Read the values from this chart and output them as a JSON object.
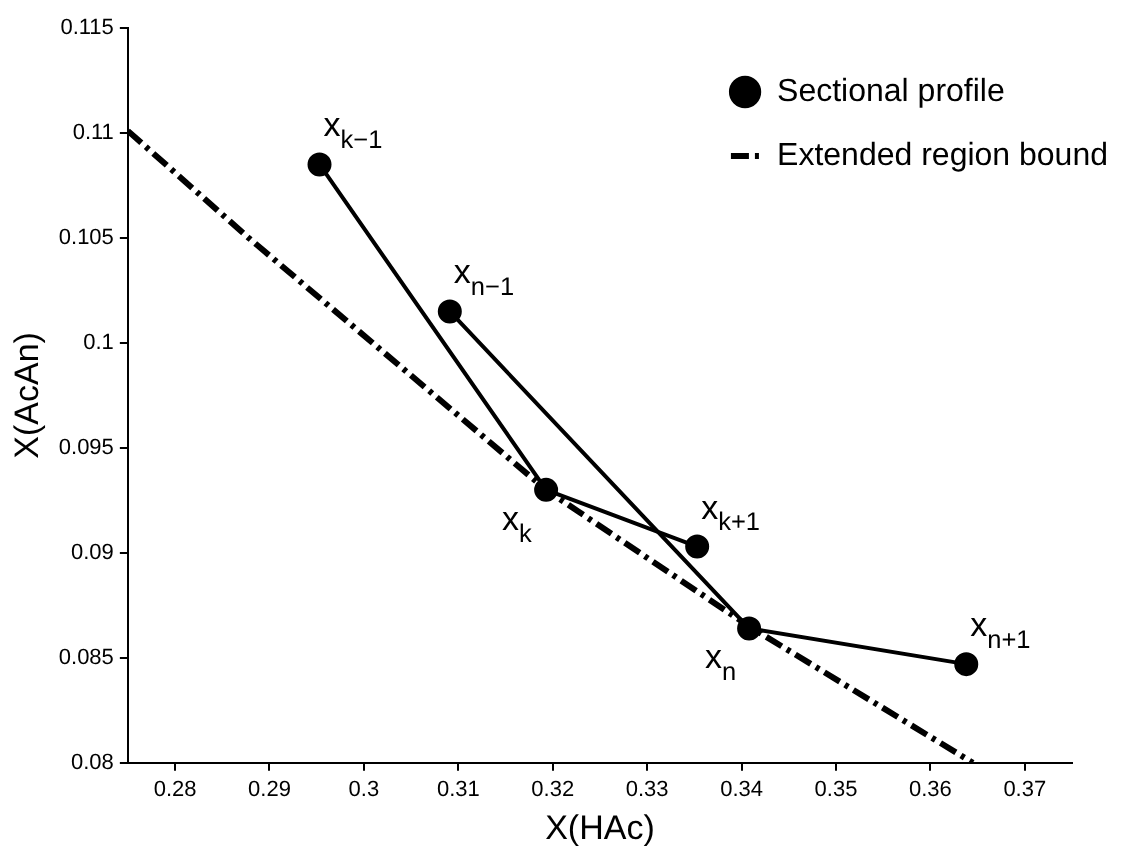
{
  "chart_data": {
    "type": "line",
    "xlabel": "X(HAc)",
    "ylabel": "X(AcAn)",
    "xlim": [
      0.275,
      0.375
    ],
    "xticks": [
      0.28,
      0.29,
      0.3,
      0.31,
      0.32,
      0.33,
      0.34,
      0.35,
      0.36,
      0.37
    ],
    "ylim": [
      0.08,
      0.115
    ],
    "yticks": [
      0.08,
      0.085,
      0.09,
      0.095,
      0.1,
      0.105,
      0.11,
      0.115
    ],
    "grid": false,
    "legend": "top right",
    "series": [
      {
        "name": "Sectional profile",
        "color": "#000000",
        "marker": "circle",
        "line_style": "solid",
        "x": [
          0.2953,
          0.3193,
          0.3353
        ],
        "values": [
          0.1085,
          0.093,
          0.0903
        ]
      },
      {
        "color": "#000000",
        "marker": "circle",
        "line_style": "solid",
        "x": [
          0.3091,
          0.3408,
          0.3638
        ],
        "values": [
          0.1015,
          0.0864,
          0.0847
        ]
      },
      {
        "name": "Extended region bound",
        "color": "#000000",
        "marker": "none",
        "line_style": "dashdot",
        "x": [
          0.275,
          0.2878,
          0.3193,
          0.3408,
          0.3645
        ],
        "values": [
          0.1101,
          0.105,
          0.093,
          0.0865,
          0.08
        ]
      }
    ],
    "annotations": [
      {
        "text": "x$_{k−1}$",
        "x": 0.2953,
        "y": 0.1085
      },
      {
        "text": "x$_{k}$",
        "x": 0.3193,
        "y": 0.093
      },
      {
        "text": "x$_{k+1}$",
        "x": 0.3353,
        "y": 0.0903
      },
      {
        "text": "x$_{n−1}$",
        "x": 0.3091,
        "y": 0.1015
      },
      {
        "text": "x$_{n}$",
        "x": 0.3408,
        "y": 0.0864
      },
      {
        "text": "x$_{n+1}$",
        "x": 0.3638,
        "y": 0.0847
      }
    ]
  }
}
